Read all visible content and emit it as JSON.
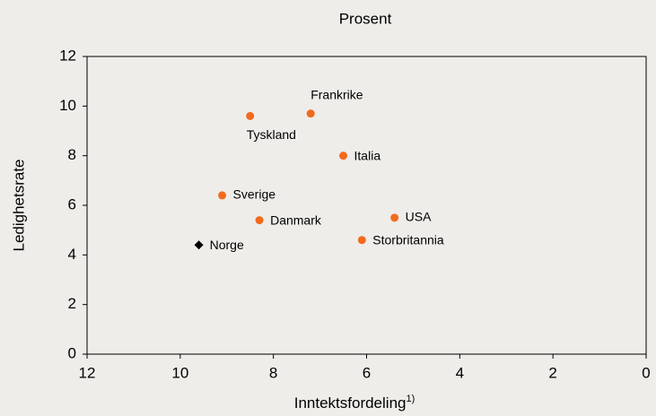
{
  "chart_data": {
    "type": "scatter",
    "title": "Prosent",
    "x_label": "Inntektsfordeling",
    "x_label_note": "1)",
    "y_label": "Ledighetsrate",
    "labels": [
      "Tyskland",
      "Frankrike",
      "Italia",
      "Sverige",
      "Danmark",
      "USA",
      "Storbritannia",
      "Norge"
    ],
    "x": [
      8.5,
      7.2,
      6.5,
      9.1,
      8.3,
      5.4,
      6.1,
      9.6
    ],
    "y": [
      9.6,
      9.7,
      8.0,
      6.4,
      5.4,
      5.5,
      4.6,
      4.4
    ],
    "colors": [
      "#f26b1d",
      "#f26b1d",
      "#f26b1d",
      "#f26b1d",
      "#f26b1d",
      "#f26b1d",
      "#f26b1d",
      "#000000"
    ],
    "markers": [
      "circle",
      "circle",
      "circle",
      "circle",
      "circle",
      "circle",
      "circle",
      "diamond"
    ],
    "xlim": [
      12,
      0
    ],
    "xticks": [
      12,
      10,
      8,
      6,
      4,
      2,
      0
    ],
    "ylim": [
      0,
      12
    ],
    "yticks": [
      0,
      2,
      4,
      6,
      8,
      10,
      12
    ]
  }
}
